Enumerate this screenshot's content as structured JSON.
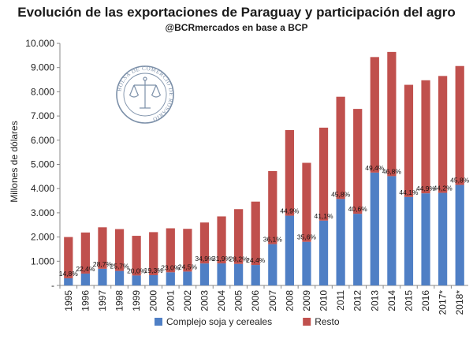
{
  "chart_data": {
    "type": "bar",
    "stacked": true,
    "title": "Evolución de las exportaciones de Paraguay y participación del agro",
    "subtitle": "@BCRmercados en base a BCP",
    "ylabel": "Millones de dólares",
    "xlabel": "",
    "ylim": [
      0,
      10000
    ],
    "yticks": [
      "-",
      "1.000",
      "2.000",
      "3.000",
      "4.000",
      "5.000",
      "6.000",
      "7.000",
      "8.000",
      "9.000",
      "10.000"
    ],
    "grid": false,
    "legend_position": "bottom",
    "categories": [
      "1995",
      "1996",
      "1997",
      "1998",
      "1999",
      "2000",
      "2001",
      "2002",
      "2003",
      "2004",
      "2005",
      "2006",
      "2007",
      "2008",
      "2009",
      "2010",
      "2011",
      "2012",
      "2013",
      "2014",
      "2015",
      "2016",
      "2017*",
      "2018*"
    ],
    "series": [
      {
        "name": "Complejo soja y cereales",
        "color": "#4f7fc5",
        "values": [
          296,
          490,
          689,
          599,
          410,
          425,
          543,
          573,
          908,
          910,
          889,
          845,
          1706,
          2881,
          1802,
          2679,
          3570,
          2961,
          4662,
          4514,
          3655,
          3806,
          3825,
          4151
        ]
      },
      {
        "name": "Resto",
        "color": "#c0504d",
        "values": [
          1704,
          1697,
          1712,
          1729,
          1640,
          1777,
          1818,
          1766,
          1692,
          1942,
          2263,
          2618,
          3020,
          3536,
          3263,
          3839,
          4225,
          4332,
          4773,
          5132,
          4633,
          4670,
          4828,
          4913
        ]
      }
    ],
    "data_labels": [
      "14,8%",
      "22,4%",
      "28,7%",
      "25,7%",
      "20,0%",
      "19,3%",
      "23,0%",
      "24,5%",
      "34,9%",
      "31,9%",
      "28,2%",
      "24,4%",
      "36,1%",
      "44,9%",
      "35,6%",
      "41,1%",
      "45,8%",
      "40,6%",
      "49,4%",
      "46,8%",
      "44,1%",
      "44,9%",
      "44,2%",
      "45,8%"
    ]
  },
  "emblem": {
    "name": "seal-bolsa-comercio-rosario",
    "text": "BOLSA DE COMERCIO DE ROSARIO"
  }
}
